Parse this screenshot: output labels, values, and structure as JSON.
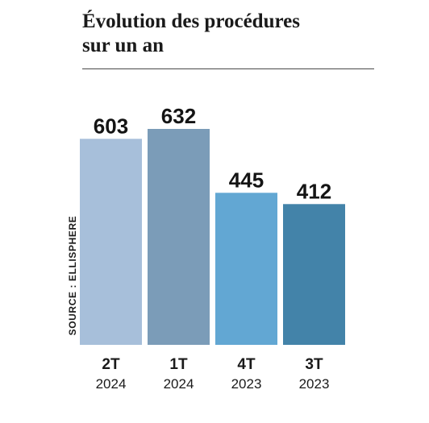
{
  "title_lines": [
    "Évolution des procédures",
    "sur un an"
  ],
  "source": "SOURCE : ELLISPHERE",
  "chart_data": {
    "type": "bar",
    "title": "Évolution des procédures sur un an",
    "categories": [
      {
        "quarter": "2T",
        "year": "2024"
      },
      {
        "quarter": "1T",
        "year": "2024"
      },
      {
        "quarter": "4T",
        "year": "2023"
      },
      {
        "quarter": "3T",
        "year": "2023"
      }
    ],
    "values": [
      603,
      632,
      445,
      412
    ],
    "value_labels": [
      "603",
      "632",
      "445",
      "412"
    ],
    "colors": [
      "#a7bfda",
      "#7b9cb8",
      "#62a7d3",
      "#4383a9"
    ],
    "xlabel": "",
    "ylabel": "",
    "ylim": [
      0,
      632
    ],
    "grid": false,
    "legend": "none"
  }
}
